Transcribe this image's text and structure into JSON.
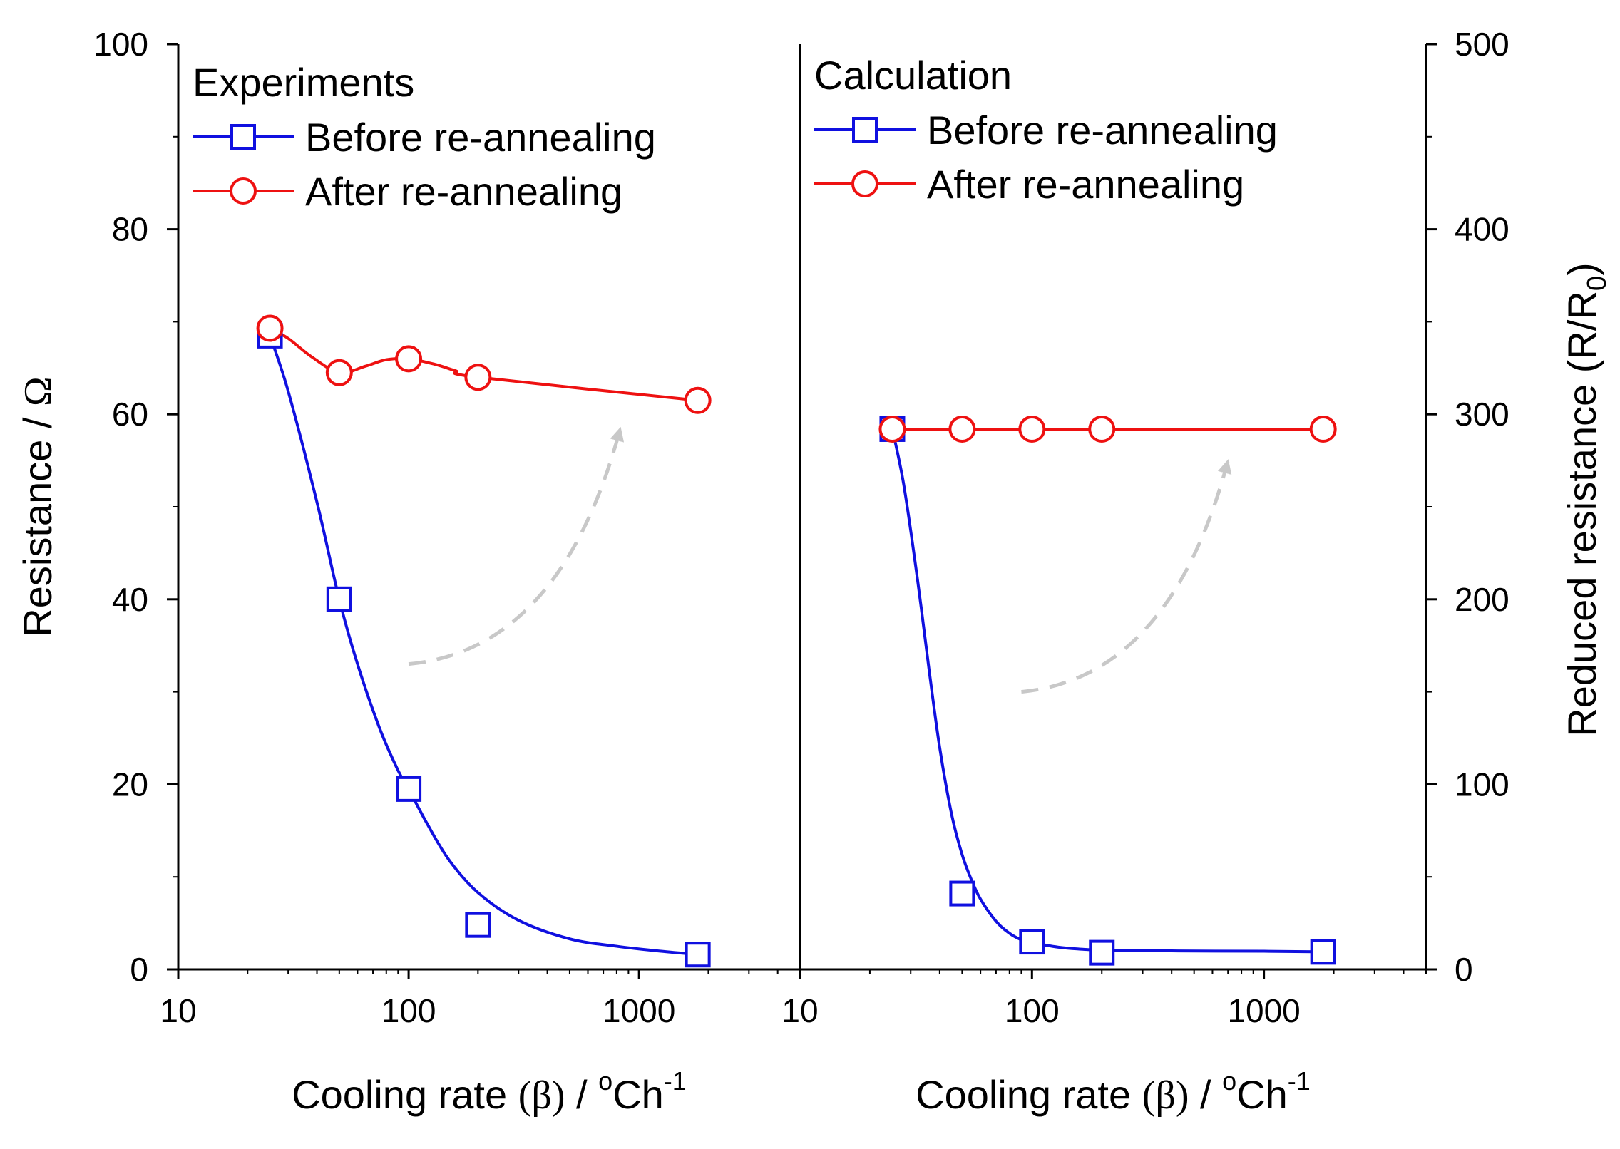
{
  "colors": {
    "before": "#1010e0",
    "after": "#ee1111",
    "arrow": "#c8c8c8",
    "axis": "#000000"
  },
  "chart_data": {
    "type": "line",
    "x_scale": "log",
    "xlim": [
      10,
      5000
    ],
    "x_ticks": [
      10,
      100,
      1000
    ],
    "x_tick_labels": [
      "10",
      "100",
      "1000"
    ],
    "xlabel_parts": {
      "main": "Cooling rate",
      "greek": "(β)",
      "mid": " / ",
      "sup_o": "o",
      "unit": "Ch",
      "sup_exp": "-1"
    },
    "left_axis": {
      "label_main": "Resistance / ",
      "label_symbol": "Ω",
      "ylim": [
        0,
        100
      ],
      "ticks": [
        0,
        20,
        40,
        60,
        80,
        100
      ],
      "tick_labels": [
        "0",
        "20",
        "40",
        "60",
        "80",
        "100"
      ]
    },
    "right_axis": {
      "label_main": "Reduced resistance (R/R",
      "label_sub": "0",
      "label_close": ")",
      "ylim": [
        0,
        500
      ],
      "ticks": [
        0,
        100,
        200,
        300,
        400,
        500
      ],
      "tick_labels": [
        "0",
        "100",
        "200",
        "300",
        "400",
        "500"
      ]
    },
    "panels": [
      {
        "title": "Experiments",
        "axis": "left",
        "series": [
          {
            "name": "Before re-annealing",
            "marker": "square",
            "x": [
              25,
              50,
              100,
              200,
              1800
            ],
            "y": [
              68.5,
              40,
              19.5,
              4.8,
              1.6
            ],
            "fit_x": [
              25,
              30,
              40,
              50,
              60,
              75,
              90,
              100,
              120,
              150,
              200,
              300,
              500,
              800,
              1200,
              1800
            ],
            "fit_y": [
              68.5,
              62.5,
              50.5,
              40,
              33,
              26,
              21.5,
              19.5,
              15.8,
              11.8,
              8.3,
              5.3,
              3.3,
              2.5,
              2.0,
              1.6
            ]
          },
          {
            "name": "After re-annealing",
            "marker": "circle",
            "x": [
              25,
              50,
              100,
              200,
              1800
            ],
            "y": [
              69.3,
              64.5,
              66,
              64,
              61.5
            ],
            "fit_x": [
              25,
              30,
              38,
              50,
              65,
              80,
              100,
              130,
              160,
              200,
              1800
            ],
            "fit_y": [
              69.3,
              68.2,
              66.2,
              64.5,
              65.2,
              65.9,
              66,
              65.4,
              64.7,
              64,
              61.5
            ]
          }
        ],
        "annotation": {
          "type": "dashed-arrow",
          "from": [
            100,
            33
          ],
          "to": [
            830,
            58.5
          ]
        }
      },
      {
        "title": "Calculation",
        "axis": "right",
        "series": [
          {
            "name": "Before re-annealing",
            "marker": "square",
            "x": [
              25,
              50,
              100,
              200,
              1800
            ],
            "y": [
              292,
              41,
              15,
              9,
              9.5
            ],
            "fit_x": [
              25,
              28,
              32,
              36,
              40,
              45,
              50,
              55,
              60,
              70,
              80,
              90,
              100,
              130,
              160,
              200,
              400,
              1000,
              1800
            ],
            "fit_y": [
              292,
              262,
              212,
              162,
              120,
              84,
              62,
              48,
              38,
              26,
              19.5,
              16,
              14.5,
              12,
              11,
              10.5,
              10,
              9.8,
              9.5
            ]
          },
          {
            "name": "After re-annealing",
            "marker": "circle",
            "x": [
              25,
              50,
              100,
              200,
              1800
            ],
            "y": [
              292,
              292,
              292,
              292,
              292
            ],
            "fit_x": [
              25,
              1800
            ],
            "fit_y": [
              292,
              292
            ]
          }
        ],
        "annotation": {
          "type": "dashed-arrow",
          "from": [
            90,
            150
          ],
          "to": [
            700,
            275
          ]
        }
      }
    ]
  }
}
